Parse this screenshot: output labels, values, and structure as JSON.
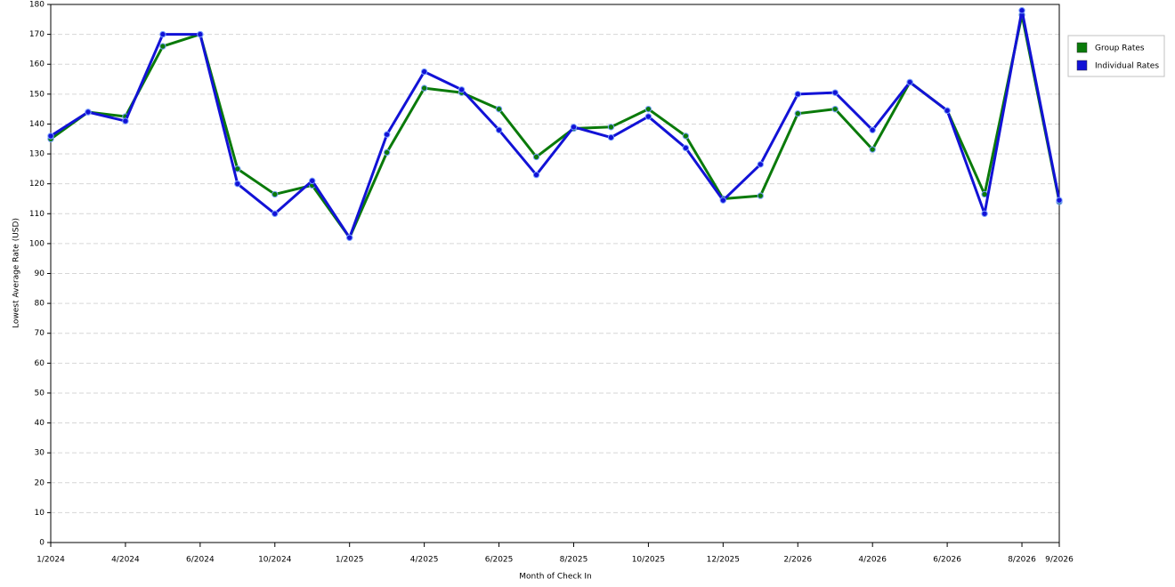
{
  "chart_data": {
    "type": "line",
    "x_label": "Month of Check In",
    "y_label": "Lowest Average Rate (USD)",
    "categories": [
      "1/2024",
      null,
      "4/2024",
      null,
      "6/2024",
      null,
      "10/2024",
      null,
      "1/2025",
      null,
      "4/2025",
      null,
      "6/2025",
      null,
      "8/2025",
      null,
      "10/2025",
      null,
      "12/2025",
      null,
      "2/2026",
      null,
      "4/2026",
      null,
      "6/2026",
      null,
      "8/2026",
      "9/2026"
    ],
    "series": [
      {
        "name": "Group Rates",
        "color": "#0a7a0a",
        "values": [
          135,
          144,
          142.5,
          166,
          170,
          125,
          116.5,
          119.5,
          102,
          130.5,
          152,
          150.5,
          145,
          129,
          138.5,
          139,
          145,
          136,
          115,
          116,
          143.5,
          145,
          131.5,
          154,
          144.5,
          116.5,
          176.5,
          114
        ]
      },
      {
        "name": "Individual Rates",
        "color": "#1212d6",
        "values": [
          136,
          144,
          141,
          170,
          170,
          120,
          110,
          121,
          102,
          136.5,
          157.5,
          151.5,
          138,
          123,
          139,
          135.5,
          142.5,
          132,
          114.5,
          126.5,
          150,
          150.5,
          138,
          154,
          144.5,
          110,
          178,
          114.5
        ]
      }
    ],
    "ylim": [
      0,
      180
    ],
    "yticks": [
      0,
      10,
      20,
      30,
      40,
      50,
      60,
      70,
      80,
      90,
      100,
      110,
      120,
      130,
      140,
      150,
      160,
      170,
      180
    ],
    "grid": true,
    "legend": "right"
  }
}
